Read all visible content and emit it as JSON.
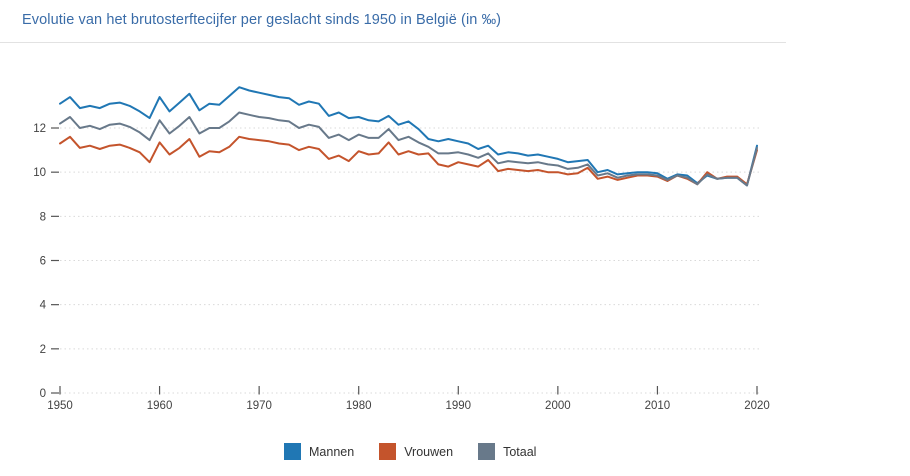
{
  "header": {
    "title": "Evolutie van het brutosterftecijfer per geslacht sinds 1950 in België (in ‰)"
  },
  "colors": {
    "title_text": "#3a6ca8",
    "mannen": "#2077b4",
    "vrouwen": "#c4542c",
    "totaal": "#68798a",
    "grid": "#d9d9d9",
    "tick": "#555555",
    "axis_text": "#424242",
    "divider": "#e2e2e2",
    "background": "#ffffff"
  },
  "legend": {
    "items": [
      {
        "label": "Mannen",
        "color": "#2077b4"
      },
      {
        "label": "Vrouwen",
        "color": "#c4542c"
      },
      {
        "label": "Totaal",
        "color": "#68798a"
      }
    ]
  },
  "chart_data": {
    "type": "line",
    "title": "Evolutie van het brutosterftecijfer per geslacht sinds 1950 in België (in ‰)",
    "xlabel": "",
    "ylabel": "",
    "unit": "‰",
    "grid": "horizontal-dotted",
    "legend_position": "bottom",
    "xlim": [
      1950,
      2020
    ],
    "ylim": [
      0,
      14
    ],
    "x_ticks": [
      1950,
      1960,
      1970,
      1980,
      1990,
      2000,
      2010,
      2020
    ],
    "y_ticks": [
      0,
      2,
      4,
      6,
      8,
      10,
      12
    ],
    "x": [
      1950,
      1951,
      1952,
      1953,
      1954,
      1955,
      1956,
      1957,
      1958,
      1959,
      1960,
      1961,
      1962,
      1963,
      1964,
      1965,
      1966,
      1967,
      1968,
      1969,
      1970,
      1971,
      1972,
      1973,
      1974,
      1975,
      1976,
      1977,
      1978,
      1979,
      1980,
      1981,
      1982,
      1983,
      1984,
      1985,
      1986,
      1987,
      1988,
      1989,
      1990,
      1991,
      1992,
      1993,
      1994,
      1995,
      1996,
      1997,
      1998,
      1999,
      2000,
      2001,
      2002,
      2003,
      2004,
      2005,
      2006,
      2007,
      2008,
      2009,
      2010,
      2011,
      2012,
      2013,
      2014,
      2015,
      2016,
      2017,
      2018,
      2019,
      2020
    ],
    "series": [
      {
        "name": "Mannen",
        "color": "#2077b4",
        "values": [
          13.1,
          13.4,
          12.9,
          13.0,
          12.9,
          13.1,
          13.15,
          13.0,
          12.75,
          12.45,
          13.4,
          12.75,
          13.15,
          13.55,
          12.8,
          13.1,
          13.05,
          13.45,
          13.85,
          13.7,
          13.6,
          13.5,
          13.4,
          13.35,
          13.05,
          13.2,
          13.1,
          12.55,
          12.7,
          12.45,
          12.5,
          12.35,
          12.3,
          12.55,
          12.15,
          12.3,
          11.95,
          11.5,
          11.4,
          11.5,
          11.4,
          11.3,
          11.05,
          11.2,
          10.8,
          10.9,
          10.85,
          10.75,
          10.8,
          10.7,
          10.6,
          10.45,
          10.5,
          10.55,
          10.0,
          10.1,
          9.9,
          9.95,
          10.0,
          10.0,
          9.95,
          9.7,
          9.9,
          9.85,
          9.5,
          9.85,
          9.7,
          9.75,
          9.75,
          9.4,
          11.2
        ]
      },
      {
        "name": "Vrouwen",
        "color": "#c4542c",
        "values": [
          11.3,
          11.6,
          11.1,
          11.2,
          11.05,
          11.2,
          11.25,
          11.1,
          10.9,
          10.45,
          11.35,
          10.8,
          11.1,
          11.5,
          10.7,
          10.95,
          10.9,
          11.15,
          11.6,
          11.5,
          11.45,
          11.4,
          11.3,
          11.25,
          11.0,
          11.15,
          11.05,
          10.6,
          10.75,
          10.5,
          10.95,
          10.8,
          10.85,
          11.35,
          10.8,
          10.95,
          10.8,
          10.85,
          10.35,
          10.25,
          10.45,
          10.35,
          10.25,
          10.55,
          10.05,
          10.15,
          10.1,
          10.05,
          10.1,
          10.0,
          10.0,
          9.9,
          9.95,
          10.2,
          9.7,
          9.8,
          9.65,
          9.75,
          9.85,
          9.85,
          9.8,
          9.6,
          9.85,
          9.7,
          9.45,
          10.0,
          9.7,
          9.8,
          9.8,
          9.45,
          11.0
        ]
      },
      {
        "name": "Totaal",
        "color": "#68798a",
        "values": [
          12.2,
          12.5,
          12.0,
          12.1,
          11.95,
          12.15,
          12.2,
          12.05,
          11.8,
          11.45,
          12.35,
          11.75,
          12.1,
          12.5,
          11.75,
          12.0,
          12.0,
          12.3,
          12.7,
          12.6,
          12.5,
          12.45,
          12.35,
          12.3,
          12.0,
          12.15,
          12.05,
          11.55,
          11.7,
          11.45,
          11.7,
          11.55,
          11.55,
          11.95,
          11.45,
          11.6,
          11.35,
          11.15,
          10.85,
          10.85,
          10.9,
          10.8,
          10.65,
          10.85,
          10.4,
          10.5,
          10.45,
          10.4,
          10.45,
          10.35,
          10.3,
          10.15,
          10.2,
          10.35,
          9.85,
          9.95,
          9.75,
          9.85,
          9.9,
          9.9,
          9.85,
          9.65,
          9.85,
          9.75,
          9.45,
          9.9,
          9.7,
          9.75,
          9.75,
          9.4,
          11.1
        ]
      }
    ]
  }
}
